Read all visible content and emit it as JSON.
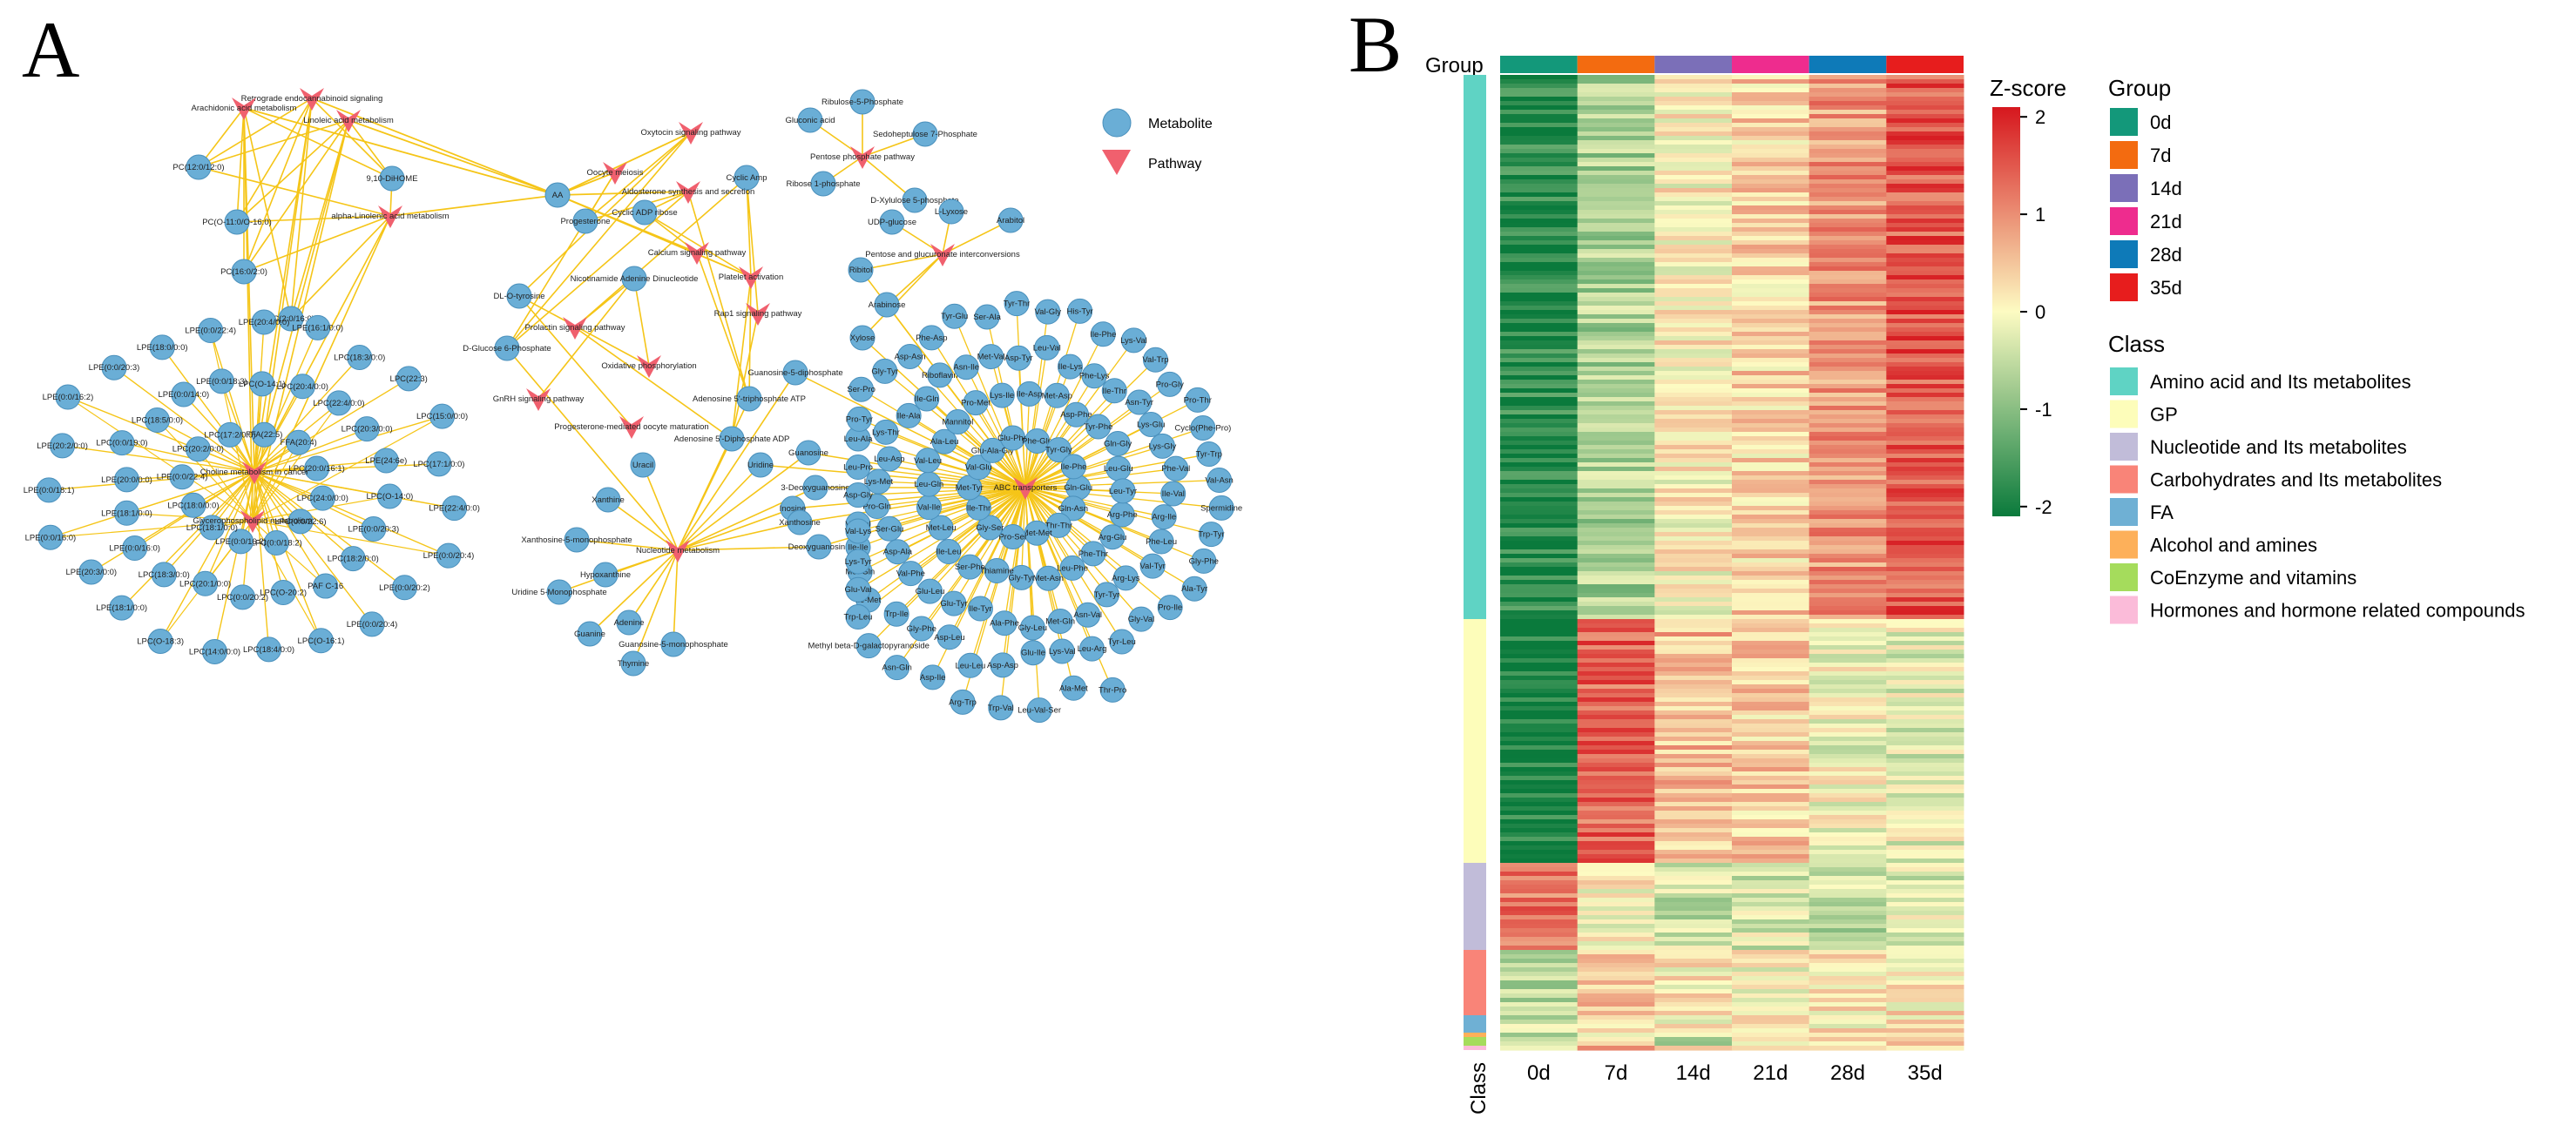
{
  "panels": {
    "a_label": "A",
    "b_label": "B"
  },
  "network": {
    "legend": {
      "metabolite": "Metabolite",
      "pathway": "Pathway"
    },
    "colors": {
      "metabolite": "#6aaed6",
      "metabolite_stroke": "#4a90bc",
      "pathway": "#f0606e",
      "edge": "#f5c518"
    },
    "pathways": [
      "Retrograde endocannabinoid signaling",
      "Arachidonic acid metabolism",
      "Linoleic acid metabolism",
      "alpha-Linolenic acid metabolism",
      "Choline metabolism in cancer",
      "Glycerophospholipid metabolism",
      "Oxytocin signaling pathway",
      "Oocyte meiosis",
      "Aldosterone synthesis and secretion",
      "Calcium signaling pathway",
      "Platelet activation",
      "Rap1 signaling pathway",
      "Prolactin signaling pathway",
      "GnRH signaling pathway",
      "Oxidative phosphorylation",
      "Progesterone-mediated oocyte maturation",
      "Nucleotide metabolism",
      "Pentose phosphate pathway",
      "Pentose and glucuronate interconversions",
      "ABC transporters"
    ],
    "lipids": [
      "PC(12:0/12:0)",
      "PC(O-11:0/O-16:0)",
      "PC(16:0/2:0)",
      "PC(2:0/16:0)",
      "9,10-DiHOME",
      "FFA(22:5)",
      "FFA(20:4)",
      "LPC(20:0/16:1)",
      "LPC(24:0/0:0)",
      "LPC(0:0/22:6)",
      "LPC(0:0/18:2)",
      "LPE(0:0/16:2)",
      "LPC(18:1/0:0)",
      "LPC(18:0/0:0)",
      "LPE(0:0/22:4)",
      "LPC(20:2/0:0)",
      "LPC(17:2/0:0)",
      "LPC(20:4/0:0)",
      "LPC(22:4/0:0)",
      "LPC(20:3/0:0)",
      "LPE(24:6e)",
      "LPC(O-14:0)",
      "LPE(0:0/20:3)",
      "LPC(18:2/0:0)",
      "PAF C-16",
      "LPC(O-20:2)",
      "LPC(0:0/20:2)",
      "LPC(20:1/0:0)",
      "LPC(18:3/0:0)",
      "LPE(0:0/16:0)",
      "LPE(18:1/0:0)",
      "LPE(20:0/0:0)",
      "LPC(0:0/19:0)",
      "LPC(18:5/0:0)",
      "LPE(0:0/14:0)",
      "LPE(0:0/18:3)",
      "LPC(O-14:1)",
      "LPC(18:3/0:0)",
      "LPC(22:3)",
      "LPC(15:0/0:0)",
      "LPC(17:1/0:0)",
      "LPE(22:4/0:0)",
      "LPE(0:0/20:4)",
      "LPE(0:0/20:2)",
      "LPE(0:0/20:4)",
      "LPC(O-16:1)",
      "LPC(18:4/0:0)",
      "LPC(14:0/0:0)",
      "LPC(O-18:3)",
      "LPE(18:1/0:0)",
      "LPE(20:3/0:0)",
      "LPE(0:0/16:0)",
      "LPE(0:0/18:1)",
      "LPE(20:2/0:0)",
      "LPE(0:0/16:2)",
      "LPE(0:0/20:3)",
      "LPE(18:0/0:0)",
      "LPE(0:0/22:4)",
      "LPE(20:4/0:0)",
      "LPE(16:1/0:0)"
    ],
    "middle": [
      "AA",
      "Progesterone",
      "Cyclic ADP ribose",
      "Cyclic Amp",
      "Nicotinamide Adenine Dinucleotide",
      "DL-O-tyrosine",
      "D-Glucose 6-Phosphate",
      "Adenosine 5'-triphosphate ATP",
      "Adenosine 5'-Diphosphate ADP",
      "Guanosine-5-diphosphate",
      "Guanosine",
      "Inosine",
      "3-Deoxyguanosine",
      "Deoxyguanosine",
      "Xanthosine",
      "Uridine",
      "Uracil",
      "Xanthine",
      "Xanthosine-5-monophosphate",
      "Uridine 5-Monophosphate",
      "Hypoxanthine",
      "Adenine",
      "Guanosine-5-monophosphate",
      "Guanine",
      "Thymine"
    ],
    "sugars": [
      "Ribulose-5-Phosphate",
      "Gluconic acid",
      "Sedoheptulose 7-Phosphate",
      "Ribose 1-phosphate",
      "D-Xylulose 5-phosphate",
      "L-Lyxose",
      "UDP-glucose",
      "Arabitol",
      "Ribitol",
      "Arabinose",
      "Xylose"
    ],
    "peptides": [
      "Gln-Glu",
      "Gln-Asn",
      "Thr-Thr",
      "Met-Met",
      "Pro-Ser",
      "Gly-Ser",
      "Ile-Thr",
      "Met-Tyr",
      "Val-Glu",
      "Glu-Ala-Gly",
      "Glu-Phe",
      "Phe-Gln",
      "Tyr-Gly",
      "Ile-Phe",
      "Arg-Phe",
      "Arg-Glu",
      "Phe-Thr",
      "Leu-Phe",
      "Met-Asn",
      "Gly-Tyr",
      "Thiamine",
      "Ser-Phe",
      "Ile-Leu",
      "Met-Leu",
      "Val-Ile",
      "Leu-Gln",
      "Val-Leu",
      "Ala-Leu",
      "Mannitol",
      "Pro-Met",
      "Lys-Ile",
      "Ile-Asp",
      "Met-Asp",
      "Asp-Phe",
      "Tyr-Phe",
      "Gln-Gly",
      "Leu-Glu",
      "Leu-Tyr",
      "Val-Tyr",
      "Arg-Lys",
      "Tyr-Tyr",
      "Asn-Val",
      "Met-Gln",
      "Gly-Leu",
      "Ala-Phe",
      "Ile-Tyr",
      "Glu-Tyr",
      "Glu-Leu",
      "Val-Phe",
      "Asp-Ala",
      "Ser-Glu",
      "Pro-Gln",
      "Lys-Met",
      "Leu-Asp",
      "Lys-Thr",
      "Ile-Ala",
      "Ile-Gln",
      "Riboflavin",
      "Asn-Ile",
      "Met-Val",
      "Asp-Tyr",
      "Leu-Val",
      "Ile-Lys",
      "Phe-Lys",
      "Ile-Thr",
      "Asn-Tyr",
      "Lys-Glu",
      "Lys-Gly",
      "Phe-Val",
      "Ile-Val",
      "Arg-Ile",
      "Phe-Leu",
      "Gly-Val",
      "Tyr-Leu",
      "Leu-Arg",
      "Lys-Val",
      "Glu-Ile",
      "Asp-Asp",
      "Leu-Leu",
      "Asp-Leu",
      "Gly-Phe",
      "Trp-Ile",
      "Ile-Met",
      "Met-Gln",
      "Ile-Ile",
      "Val-Val",
      "Asp-Gly",
      "Leu-Pro",
      "Leu-Ala",
      "Pro-Tyr",
      "Ser-Pro",
      "Gly-Tyr",
      "Asp-Asn",
      "Phe-Asp",
      "Tyr-Glu",
      "Ser-Ala",
      "Tyr-Thr",
      "Val-Gly",
      "His-Tyr",
      "Ile-Phe",
      "Lys-Val",
      "Val-Trp",
      "Pro-Gly",
      "Pro-Thr",
      "Cyclo(Phe-Pro)",
      "Tyr-Trp",
      "Val-Asn",
      "Spermidine",
      "Trp-Tyr",
      "Gly-Phe",
      "Ala-Tyr",
      "Pro-Ile",
      "Thr-Pro",
      "Ala-Met",
      "Leu-Val-Ser",
      "Trp-Val",
      "Arg-Trp",
      "Asp-Ile",
      "Asn-Gln",
      "Methyl beta-D-galactopyranoside",
      "Trp-Leu",
      "Glu-Val",
      "Lys-Tyr",
      "Val-Lys"
    ]
  },
  "heatmap": {
    "group_label": "Group",
    "class_label": "Class",
    "zscore_title": "Z-score",
    "zscore_ticks": [
      "2",
      "1",
      "0",
      "-1",
      "-2"
    ],
    "colors": {
      "low": "#0a7a3c",
      "mid": "#fdfbc2",
      "high": "#d6171e"
    },
    "legend_group_title": "Group",
    "legend_class_title": "Class",
    "groups": [
      {
        "name": "0d",
        "color": "#13987a"
      },
      {
        "name": "7d",
        "color": "#f36b10"
      },
      {
        "name": "14d",
        "color": "#7b6fb8"
      },
      {
        "name": "21d",
        "color": "#ee2c8e"
      },
      {
        "name": "28d",
        "color": "#0e7ab8"
      },
      {
        "name": "35d",
        "color": "#e71d1d"
      }
    ],
    "classes": [
      {
        "name": "Amino acid and Its metabolites",
        "color": "#5fd3c4",
        "share": 0.595
      },
      {
        "name": "GP",
        "color": "#fdfdba",
        "share": 0.25
      },
      {
        "name": "Nucleotide and Its metabolites",
        "color": "#c1bcd9",
        "share": 0.09
      },
      {
        "name": "Carbohydrates and Its metabolites",
        "color": "#f98478",
        "share": 0.065
      },
      {
        "name": "FA",
        "color": "#6fb0d4",
        "share": 0.016
      },
      {
        "name": "Alcohol and amines",
        "color": "#fdb05a",
        "share": 0.006
      },
      {
        "name": "CoEnzyme and vitamins",
        "color": "#a5dc5c",
        "share": 0.007
      },
      {
        "name": "Hormones and hormone related compounds",
        "color": "#fbbbd9",
        "share": 0.005
      }
    ],
    "profiles": [
      {
        "class": "Amino acid and Its metabolites",
        "mean": [
          -1.85,
          -0.7,
          0.05,
          0.35,
          0.9,
          1.5
        ]
      },
      {
        "class": "GP",
        "mean": [
          -2.0,
          1.4,
          0.6,
          0.4,
          -0.1,
          -0.2
        ]
      },
      {
        "class": "Nucleotide and Its metabolites",
        "mean": [
          1.2,
          0.1,
          -0.4,
          -0.3,
          -0.5,
          -0.3
        ]
      },
      {
        "class": "Carbohydrates and Its metabolites",
        "mean": [
          -0.6,
          0.5,
          0.1,
          0.0,
          0.1,
          0.2
        ]
      },
      {
        "class": "FA",
        "mean": [
          -0.5,
          0.3,
          0.1,
          0.0,
          0.1,
          0.1
        ]
      },
      {
        "class": "Alcohol and amines",
        "mean": [
          -0.4,
          0.2,
          0.1,
          0.1,
          0.1,
          0.2
        ]
      },
      {
        "class": "CoEnzyme and vitamins",
        "mean": [
          -0.3,
          0.5,
          -1.2,
          0.2,
          0.2,
          0.3
        ]
      },
      {
        "class": "Hormones and hormone related compounds",
        "mean": [
          -0.2,
          0.6,
          0.0,
          0.1,
          0.0,
          -0.2
        ]
      }
    ]
  }
}
